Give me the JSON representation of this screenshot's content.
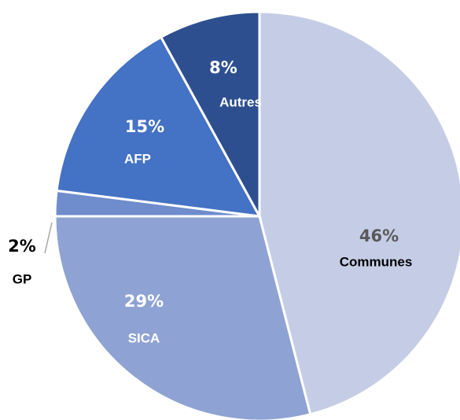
{
  "chart_data": {
    "type": "pie",
    "categories": [
      "Communes",
      "SICA",
      "GP",
      "AFP",
      "Autres"
    ],
    "values": [
      46,
      29,
      2,
      15,
      8
    ],
    "value_labels": [
      "46%",
      "29%",
      "2%",
      "15%",
      "8%"
    ],
    "colors": [
      "#c5cde6",
      "#8ea3d3",
      "#6f8ccc",
      "#4472c4",
      "#2e4f8f"
    ]
  }
}
